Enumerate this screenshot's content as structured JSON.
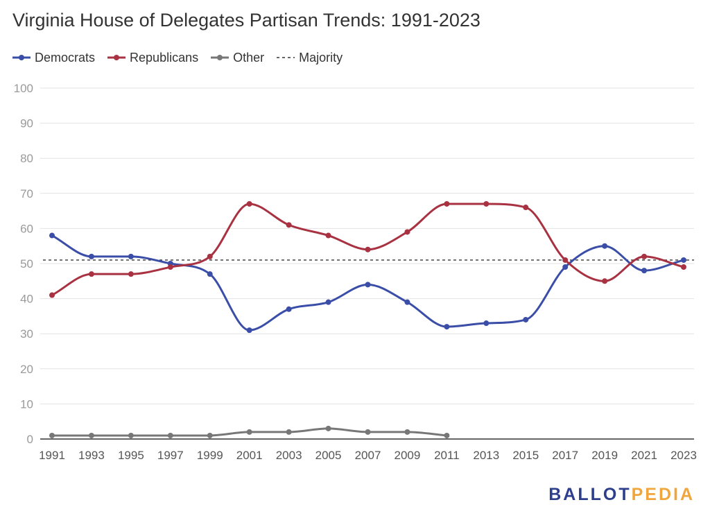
{
  "chart_data": {
    "type": "line",
    "title": "Virginia House of Delegates Partisan Trends: 1991-2023",
    "xlabel": "",
    "ylabel": "",
    "ylim": [
      0,
      100
    ],
    "yticks": [
      0,
      10,
      20,
      30,
      40,
      50,
      60,
      70,
      80,
      90,
      100
    ],
    "x": [
      "1991",
      "1993",
      "1995",
      "1997",
      "1999",
      "2001",
      "2003",
      "2005",
      "2007",
      "2009",
      "2011",
      "2013",
      "2015",
      "2017",
      "2019",
      "2021",
      "2023"
    ],
    "series": [
      {
        "name": "Democrats",
        "color": "#3a4ea8",
        "values": [
          58,
          52,
          52,
          50,
          47,
          31,
          37,
          39,
          44,
          39,
          32,
          33,
          34,
          49,
          55,
          48,
          51
        ]
      },
      {
        "name": "Republicans",
        "color": "#a83241",
        "values": [
          41,
          47,
          47,
          49,
          52,
          67,
          61,
          58,
          54,
          59,
          67,
          67,
          66,
          51,
          45,
          52,
          49
        ]
      },
      {
        "name": "Other",
        "color": "#777777",
        "values": [
          1,
          1,
          1,
          1,
          1,
          2,
          2,
          3,
          2,
          2,
          1,
          null,
          null,
          null,
          null,
          null,
          null
        ]
      }
    ],
    "reference_lines": [
      {
        "name": "Majority",
        "value": 51,
        "style": "dashed",
        "color": "#333333"
      }
    ],
    "grid": true,
    "legend_position": "top-left"
  },
  "logo": {
    "part1": "BALLOT",
    "part2": "PEDIA"
  }
}
